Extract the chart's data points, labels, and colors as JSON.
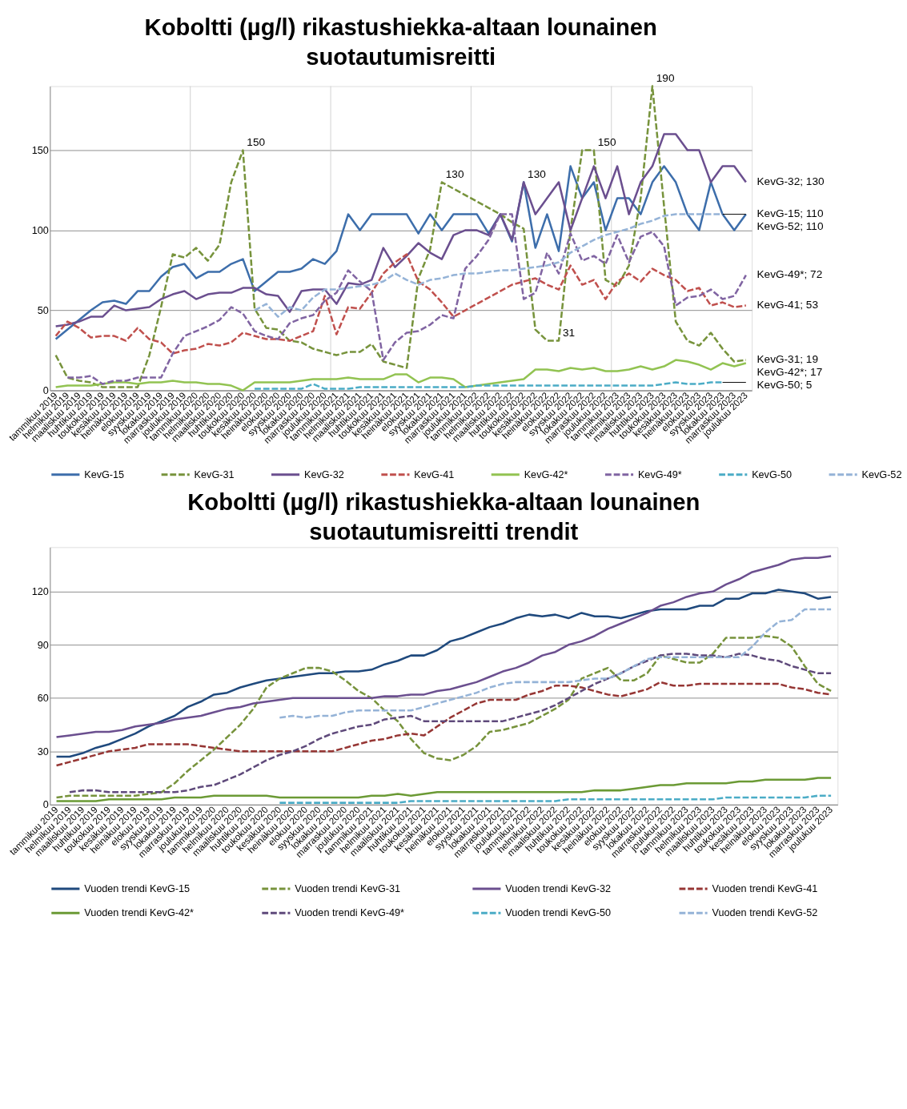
{
  "chart_data": [
    {
      "type": "line",
      "title": "Koboltti (µg/l) rikastushiekka-altaan lounainen suotautumisreitti",
      "categories": [
        "tammikuu 2019",
        "helmikuu 2019",
        "maaliskuu 2019",
        "huhtikuu 2019",
        "toukokuu 2019",
        "kesäkuu 2019",
        "heinäkuu 2019",
        "elokuu 2019",
        "syyskuu 2019",
        "lokakuu 2019",
        "marraskuu 2019",
        "joulukuu 2019",
        "tammikuu 2020",
        "helmikuu 2020",
        "maaliskuu 2020",
        "huhtikuu 2020",
        "toukokuu 2020",
        "kesäkuu 2020",
        "heinäkuu 2020",
        "elokuu 2020",
        "syyskuu 2020",
        "lokakuu 2020",
        "marraskuu 2020",
        "joulukuu 2020",
        "tammikuu 2021",
        "helmikuu 2021",
        "maaliskuu 2021",
        "huhtikuu 2021",
        "toukokuu 2021",
        "kesäkuu 2021",
        "heinäkuu 2021",
        "elokuu 2021",
        "syyskuu 2021",
        "lokakuu 2021",
        "marraskuu 2021",
        "joulukuu 2021",
        "tammikuu 2022",
        "helmikuu 2022",
        "maaliskuu 2022",
        "huhtikuu 2022",
        "toukokuu 2022",
        "kesäkuu 2022",
        "heinäkuu 2022",
        "elokuu 2022",
        "syyskuu 2022",
        "lokakuu 2022",
        "marraskuu 2022",
        "joulukuu 2022",
        "tammikuu 2023",
        "helmikuu 2023",
        "maaliskuu 2023",
        "huhtikuu 2023",
        "toukokuu 2023",
        "kesäkuu 2023",
        "heinäkuu 2023",
        "elokuu 2023",
        "syyskuu 2023",
        "lokakuu 2023",
        "marraskuu 2023",
        "joulukuu 2023"
      ],
      "series": [
        {
          "name": "KevG-15",
          "color": "#3d6eab",
          "line_style": "solid",
          "values": [
            32,
            38,
            44,
            50,
            55,
            56,
            54,
            62,
            62,
            71,
            77,
            79,
            70,
            74,
            74,
            79,
            82,
            62,
            68,
            74,
            74,
            76,
            82,
            79,
            87,
            110,
            100,
            110,
            110,
            110,
            110,
            98,
            110,
            100,
            110,
            110,
            110,
            98,
            110,
            93,
            130,
            89,
            110,
            87,
            140,
            120,
            130,
            100,
            120,
            120,
            110,
            130,
            140,
            130,
            110,
            100,
            130,
            110,
            100,
            110
          ]
        },
        {
          "name": "KevG-31",
          "color": "#77933c",
          "line_style": "dashed",
          "values": [
            22,
            8,
            6,
            5,
            2,
            2,
            2,
            2,
            22,
            52,
            85,
            83,
            89,
            81,
            91,
            130,
            150,
            51,
            39,
            38,
            31,
            30,
            26,
            24,
            22,
            24,
            24,
            29,
            18,
            16,
            14,
            70,
            88,
            130,
            126,
            122,
            118,
            114,
            110,
            105,
            101,
            38,
            31,
            31,
            100,
            150,
            150,
            69,
            65,
            78,
            120,
            190,
            115,
            43,
            31,
            28,
            36,
            26,
            18,
            19
          ]
        },
        {
          "name": "KevG-32",
          "color": "#6b4f8f",
          "line_style": "solid",
          "values": [
            40,
            41,
            43,
            46,
            46,
            53,
            50,
            51,
            52,
            57,
            60,
            62,
            57,
            60,
            61,
            61,
            64,
            64,
            60,
            59,
            49,
            62,
            63,
            63,
            54,
            67,
            66,
            69,
            89,
            77,
            84,
            92,
            86,
            82,
            97,
            100,
            100,
            97,
            110,
            94,
            130,
            110,
            120,
            130,
            100,
            120,
            140,
            120,
            140,
            110,
            130,
            140,
            160,
            160,
            150,
            150,
            130,
            140,
            140,
            130
          ]
        },
        {
          "name": "KevG-41",
          "color": "#c0504d",
          "line_style": "dashed",
          "values": [
            34,
            43,
            39,
            33,
            34,
            34,
            31,
            39,
            32,
            30,
            23,
            25,
            26,
            29,
            28,
            30,
            36,
            34,
            32,
            32,
            31,
            34,
            37,
            59,
            35,
            52,
            51,
            61,
            73,
            80,
            85,
            68,
            63,
            55,
            46,
            50,
            54,
            58,
            62,
            66,
            68,
            70,
            66,
            63,
            78,
            66,
            69,
            57,
            68,
            73,
            68,
            76,
            72,
            69,
            62,
            64,
            53,
            55,
            52,
            53
          ]
        },
        {
          "name": "KevG-42*",
          "color": "#92c352",
          "line_style": "solid",
          "values": [
            2,
            3,
            3,
            3,
            4,
            5,
            5,
            4,
            5,
            5,
            6,
            5,
            5,
            4,
            4,
            3,
            0,
            5,
            5,
            5,
            5,
            6,
            7,
            7,
            7,
            8,
            7,
            7,
            7,
            10,
            10,
            5,
            8,
            8,
            7,
            2,
            3,
            4,
            5,
            6,
            7,
            13,
            13,
            12,
            14,
            13,
            14,
            12,
            12,
            13,
            15,
            13,
            15,
            19,
            18,
            16,
            13,
            17,
            15,
            17
          ]
        },
        {
          "name": "KevG-49*",
          "color": "#8064a2",
          "line_style": "dashed",
          "values": [
            null,
            8,
            8,
            9,
            4,
            6,
            6,
            8,
            8,
            8,
            23,
            34,
            37,
            40,
            44,
            52,
            48,
            37,
            34,
            32,
            42,
            45,
            47,
            56,
            61,
            75,
            68,
            62,
            19,
            30,
            36,
            37,
            41,
            47,
            45,
            76,
            84,
            94,
            110,
            110,
            57,
            61,
            86,
            73,
            98,
            81,
            84,
            79,
            97,
            80,
            96,
            99,
            90,
            53,
            58,
            59,
            63,
            57,
            59,
            72
          ]
        },
        {
          "name": "KevG-50",
          "color": "#4bacc6",
          "line_style": "dashed",
          "values": [
            null,
            null,
            null,
            null,
            null,
            null,
            null,
            null,
            null,
            null,
            null,
            null,
            null,
            null,
            null,
            null,
            null,
            1,
            1,
            1,
            1,
            1,
            4,
            1,
            1,
            1,
            2,
            2,
            2,
            2,
            2,
            2,
            2,
            2,
            2,
            2,
            3,
            3,
            3,
            3,
            3,
            3,
            3,
            3,
            3,
            3,
            3,
            3,
            3,
            3,
            3,
            3,
            4,
            5,
            4,
            4,
            5,
            5,
            null,
            null
          ]
        },
        {
          "name": "KevG-52",
          "color": "#95b3d7",
          "line_style": "dashed",
          "values": [
            null,
            null,
            null,
            null,
            null,
            null,
            null,
            null,
            null,
            null,
            null,
            null,
            null,
            null,
            null,
            null,
            null,
            50,
            54,
            46,
            52,
            50,
            58,
            63,
            63,
            64,
            65,
            66,
            68,
            73,
            69,
            66,
            69,
            70,
            72,
            73,
            73,
            74,
            75,
            75,
            76,
            77,
            78,
            80,
            86,
            90,
            94,
            97,
            99,
            101,
            104,
            106,
            109,
            110,
            110,
            110,
            110,
            110,
            null,
            null
          ]
        }
      ],
      "ylim": [
        0,
        190
      ],
      "yticks": [
        0,
        50,
        100,
        150
      ],
      "grid": true,
      "legend": "bottom",
      "annotations": [
        {
          "text": "150",
          "x": "toukokuu 2020",
          "y": 150
        },
        {
          "text": "130",
          "x": "lokakuu 2021",
          "y": 130
        },
        {
          "text": "130",
          "x": "toukokuu 2022",
          "y": 130
        },
        {
          "text": "31",
          "x": "elokuu 2022",
          "y": 31
        },
        {
          "text": "150",
          "x": "marraskuu 2022",
          "y": 150
        },
        {
          "text": "190",
          "x": "huhtikuu 2023",
          "y": 190
        },
        {
          "text": "KevG-32; 130",
          "x": "joulukuu 2023",
          "y": 130
        },
        {
          "text": "KevG-15; 110",
          "x": "joulukuu 2023",
          "y": 110
        },
        {
          "text": "KevG-52; 110",
          "x": "lokakuu 2023",
          "y": 110
        },
        {
          "text": "KevG-49*; 72",
          "x": "joulukuu 2023",
          "y": 72
        },
        {
          "text": "KevG-41; 53",
          "x": "joulukuu 2023",
          "y": 53
        },
        {
          "text": "KevG-31; 19",
          "x": "joulukuu 2023",
          "y": 19
        },
        {
          "text": "KevG-42*; 17",
          "x": "joulukuu 2023",
          "y": 17
        },
        {
          "text": "KevG-50; 5",
          "x": "lokakuu 2023",
          "y": 5
        }
      ]
    },
    {
      "type": "line",
      "title": "Koboltti (µg/l) rikastushiekka-altaan lounainen suotautumisreitti trendit",
      "categories": [
        "tammikuu 2019",
        "helmikuu 2019",
        "maaliskuu 2019",
        "huhtikuu 2019",
        "toukokuu 2019",
        "kesäkuu 2019",
        "heinäkuu 2019",
        "elokuu 2019",
        "syyskuu 2019",
        "lokakuu 2019",
        "marraskuu 2019",
        "joulukuu 2019",
        "tammikuu 2020",
        "helmikuu 2020",
        "maaliskuu 2020",
        "huhtikuu 2020",
        "toukokuu 2020",
        "kesäkuu 2020",
        "heinäkuu 2020",
        "elokuu 2020",
        "syyskuu 2020",
        "lokakuu 2020",
        "marraskuu 2020",
        "joulukuu 2020",
        "tammikuu 2021",
        "helmikuu 2021",
        "maaliskuu 2021",
        "huhtikuu 2021",
        "toukokuu 2021",
        "kesäkuu 2021",
        "heinäkuu 2021",
        "elokuu 2021",
        "syyskuu 2021",
        "lokakuu 2021",
        "marraskuu 2021",
        "joulukuu 2021",
        "tammikuu 2022",
        "helmikuu 2022",
        "maaliskuu 2022",
        "huhtikuu 2022",
        "toukokuu 2022",
        "kesäkuu 2022",
        "heinäkuu 2022",
        "elokuu 2022",
        "syyskuu 2022",
        "lokakuu 2022",
        "marraskuu 2022",
        "joulukuu 2022",
        "tammikuu 2023",
        "helmikuu 2023",
        "maaliskuu 2023",
        "huhtikuu 2023",
        "toukokuu 2023",
        "kesäkuu 2023",
        "heinäkuu 2023",
        "elokuu 2023",
        "syyskuu 2023",
        "lokakuu 2023",
        "marraskuu 2023",
        "joulukuu 2023"
      ],
      "series": [
        {
          "name": "Vuoden trendi KevG-15",
          "color": "#1f497d",
          "line_style": "solid",
          "values": [
            27,
            27,
            29,
            32,
            34,
            37,
            40,
            44,
            47,
            50,
            55,
            58,
            62,
            63,
            66,
            68,
            70,
            71,
            72,
            73,
            74,
            74,
            75,
            75,
            76,
            79,
            81,
            84,
            84,
            87,
            92,
            94,
            97,
            100,
            102,
            105,
            107,
            106,
            107,
            105,
            108,
            106,
            106,
            105,
            107,
            109,
            110,
            110,
            110,
            112,
            112,
            116,
            116,
            119,
            119,
            121,
            120,
            119,
            116,
            117
          ]
        },
        {
          "name": "Vuoden trendi KevG-31",
          "color": "#77933c",
          "line_style": "dashed",
          "values": [
            4,
            5,
            5,
            5,
            5,
            5,
            5,
            6,
            7,
            12,
            19,
            25,
            31,
            38,
            45,
            54,
            66,
            71,
            74,
            77,
            77,
            75,
            70,
            64,
            60,
            53,
            47,
            37,
            29,
            26,
            25,
            28,
            33,
            41,
            42,
            44,
            46,
            50,
            54,
            59,
            71,
            74,
            77,
            70,
            70,
            74,
            84,
            82,
            80,
            80,
            85,
            94,
            94,
            94,
            95,
            94,
            89,
            78,
            68,
            64
          ]
        },
        {
          "name": "Vuoden trendi KevG-32",
          "color": "#6b4f8f",
          "line_style": "solid",
          "values": [
            38,
            39,
            40,
            41,
            41,
            42,
            44,
            45,
            46,
            48,
            49,
            50,
            52,
            54,
            55,
            57,
            58,
            59,
            60,
            60,
            60,
            60,
            60,
            60,
            60,
            61,
            61,
            62,
            62,
            64,
            65,
            67,
            69,
            72,
            75,
            77,
            80,
            84,
            86,
            90,
            92,
            95,
            99,
            102,
            105,
            108,
            112,
            114,
            117,
            119,
            120,
            124,
            127,
            131,
            133,
            135,
            138,
            139,
            139,
            140
          ]
        },
        {
          "name": "Vuoden trendi KevG-41",
          "color": "#963634",
          "line_style": "dashed",
          "values": [
            22,
            24,
            26,
            28,
            30,
            31,
            32,
            34,
            34,
            34,
            34,
            33,
            32,
            31,
            30,
            30,
            30,
            30,
            30,
            30,
            30,
            30,
            32,
            34,
            36,
            37,
            39,
            40,
            39,
            44,
            49,
            53,
            57,
            59,
            59,
            59,
            62,
            64,
            67,
            67,
            66,
            64,
            62,
            61,
            63,
            65,
            69,
            67,
            67,
            68,
            68,
            68,
            68,
            68,
            68,
            68,
            66,
            65,
            63,
            62
          ]
        },
        {
          "name": "Vuoden trendi KevG-42*",
          "color": "#6b9a35",
          "line_style": "solid",
          "values": [
            2,
            2,
            2,
            2,
            3,
            3,
            3,
            3,
            3,
            4,
            4,
            4,
            5,
            5,
            5,
            5,
            5,
            4,
            4,
            4,
            4,
            4,
            4,
            4,
            5,
            5,
            6,
            5,
            6,
            7,
            7,
            7,
            7,
            7,
            7,
            7,
            7,
            7,
            7,
            7,
            7,
            8,
            8,
            8,
            9,
            10,
            11,
            11,
            12,
            12,
            12,
            12,
            13,
            13,
            14,
            14,
            14,
            14,
            15,
            15
          ]
        },
        {
          "name": "Vuoden trendi KevG-49*",
          "color": "#5f4a7b",
          "line_style": "dashed",
          "values": [
            null,
            7,
            8,
            8,
            7,
            7,
            7,
            7,
            7,
            7,
            8,
            10,
            11,
            14,
            17,
            21,
            25,
            28,
            30,
            33,
            37,
            40,
            42,
            44,
            45,
            48,
            49,
            50,
            47,
            47,
            47,
            47,
            47,
            47,
            47,
            49,
            51,
            53,
            56,
            60,
            64,
            68,
            71,
            74,
            78,
            81,
            84,
            85,
            85,
            84,
            84,
            83,
            85,
            84,
            82,
            81,
            78,
            76,
            74,
            74
          ]
        },
        {
          "name": "Vuoden trendi KevG-50",
          "color": "#4bacc6",
          "line_style": "dashed",
          "values": [
            null,
            null,
            null,
            null,
            null,
            null,
            null,
            null,
            null,
            null,
            null,
            null,
            null,
            null,
            null,
            null,
            null,
            1,
            1,
            1,
            1,
            1,
            1,
            1,
            1,
            1,
            1,
            2,
            2,
            2,
            2,
            2,
            2,
            2,
            2,
            2,
            2,
            2,
            2,
            3,
            3,
            3,
            3,
            3,
            3,
            3,
            3,
            3,
            3,
            3,
            3,
            4,
            4,
            4,
            4,
            4,
            4,
            4,
            5,
            5
          ]
        },
        {
          "name": "Vuoden trendi KevG-52",
          "color": "#95b3d7",
          "line_style": "dashed",
          "values": [
            null,
            null,
            null,
            null,
            null,
            null,
            null,
            null,
            null,
            null,
            null,
            null,
            null,
            null,
            null,
            null,
            null,
            49,
            50,
            49,
            50,
            50,
            52,
            53,
            53,
            53,
            53,
            53,
            55,
            57,
            59,
            61,
            63,
            66,
            68,
            69,
            69,
            69,
            69,
            69,
            70,
            71,
            71,
            74,
            78,
            82,
            83,
            83,
            83,
            83,
            83,
            83,
            83,
            89,
            97,
            103,
            104,
            110,
            110,
            110
          ]
        }
      ],
      "ylim": [
        0,
        145
      ],
      "yticks": [
        0,
        30,
        60,
        90,
        120
      ],
      "grid": "y",
      "legend": "bottom"
    }
  ]
}
